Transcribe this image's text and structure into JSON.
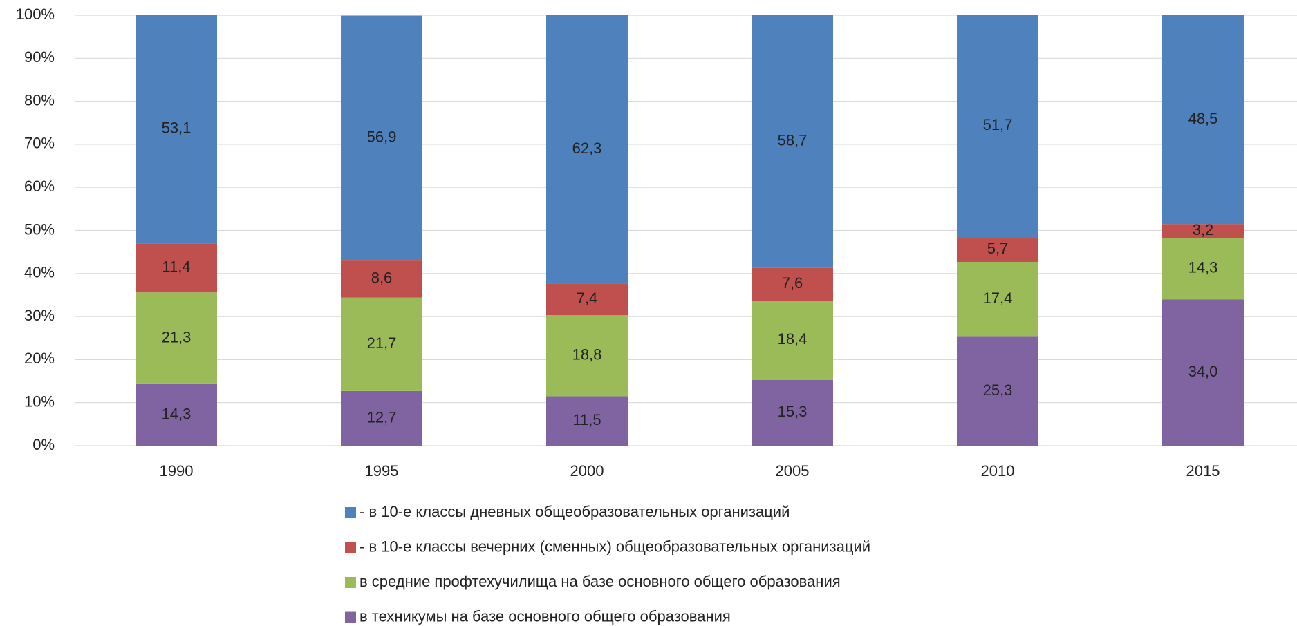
{
  "chart_data": {
    "type": "stacked_bar",
    "categories": [
      "1990",
      "1995",
      "2000",
      "2005",
      "2010",
      "2015"
    ],
    "series": [
      {
        "name": "- в 10-е классы дневных общеобразовательных организаций",
        "color": "#4f81bd",
        "values": [
          53.1,
          56.9,
          62.3,
          58.7,
          51.7,
          48.5
        ],
        "value_labels": [
          "53,1",
          "56,9",
          "62,3",
          "58,7",
          "51,7",
          "48,5"
        ]
      },
      {
        "name": "- в 10-е классы вечерних (сменных) общеобразовательных организаций",
        "color": "#c0504d",
        "values": [
          11.4,
          8.6,
          7.4,
          7.6,
          5.7,
          3.2
        ],
        "value_labels": [
          "11,4",
          "8,6",
          "7,4",
          "7,6",
          "5,7",
          "3,2"
        ]
      },
      {
        "name": "в средние профтехучилища на базе основного общего образования",
        "color": "#9bbb59",
        "values": [
          21.3,
          21.7,
          18.8,
          18.4,
          17.4,
          14.3
        ],
        "value_labels": [
          "21,3",
          "21,7",
          "18,8",
          "18,4",
          "17,4",
          "14,3"
        ]
      },
      {
        "name": "в техникумы на базе основного общего образования",
        "color": "#8064a2",
        "values": [
          14.3,
          12.7,
          11.5,
          15.3,
          25.3,
          34.0
        ],
        "value_labels": [
          "14,3",
          "12,7",
          "11,5",
          "15,3",
          "25,3",
          "34,0"
        ]
      }
    ],
    "ylim": [
      0,
      100
    ],
    "yticks": [
      {
        "value": 0,
        "label": "0%"
      },
      {
        "value": 10,
        "label": "10%"
      },
      {
        "value": 20,
        "label": "20%"
      },
      {
        "value": 30,
        "label": "30%"
      },
      {
        "value": 40,
        "label": "40%"
      },
      {
        "value": 50,
        "label": "50%"
      },
      {
        "value": 60,
        "label": "60%"
      },
      {
        "value": 70,
        "label": "70%"
      },
      {
        "value": 80,
        "label": "80%"
      },
      {
        "value": 90,
        "label": "90%"
      },
      {
        "value": 100,
        "label": "100%"
      }
    ],
    "grid": true,
    "legend": "bottom"
  }
}
